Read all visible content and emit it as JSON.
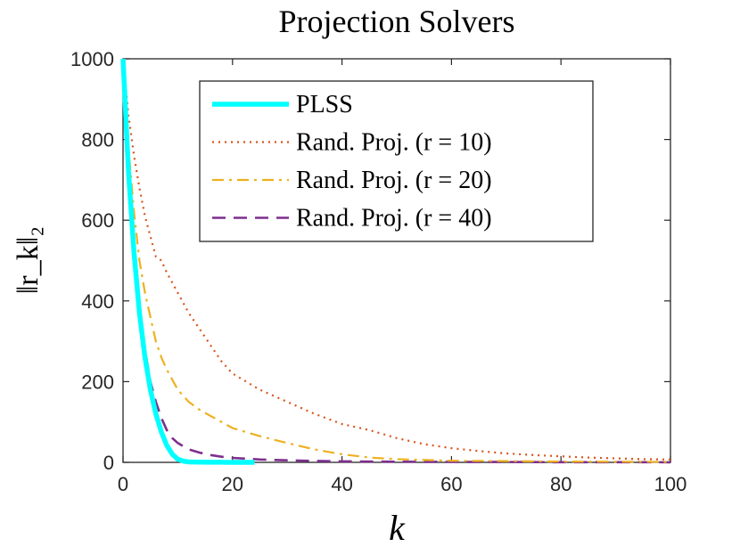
{
  "chart_data": {
    "type": "line",
    "title": "Projection Solvers",
    "xlabel": "k",
    "ylabel": "‖r_k‖₂",
    "xlim": [
      0,
      100
    ],
    "ylim": [
      0,
      1000
    ],
    "xticks": [
      "0",
      "20",
      "40",
      "60",
      "80",
      "100"
    ],
    "yticks": [
      "0",
      "200",
      "400",
      "600",
      "800",
      "1000"
    ],
    "legend_position": "top-center",
    "series": [
      {
        "name": "PLSS",
        "label": "PLSS",
        "color": "#00FFFF",
        "style": "solid",
        "x": [
          0,
          1,
          2,
          3,
          4,
          5,
          6,
          7,
          8,
          9,
          10,
          11,
          12,
          14,
          16,
          18,
          20,
          22,
          24
        ],
        "y": [
          1000,
          720,
          520,
          370,
          260,
          180,
          120,
          75,
          42,
          20,
          8,
          3,
          1,
          0.5,
          0.3,
          0.2,
          0.1,
          0.1,
          0.1
        ]
      },
      {
        "name": "Rand. Proj. (r = 10)",
        "label": "Rand. Proj. (r = 10)",
        "color": "#D95319",
        "style": "dotted",
        "x": [
          0,
          1,
          2,
          3,
          4,
          5,
          6,
          7,
          8,
          10,
          12,
          14,
          16,
          18,
          20,
          25,
          30,
          35,
          40,
          45,
          50,
          55,
          60,
          65,
          70,
          75,
          80,
          85,
          90,
          95,
          100
        ],
        "y": [
          1000,
          860,
          760,
          680,
          610,
          560,
          510,
          500,
          470,
          420,
          370,
          330,
          290,
          250,
          220,
          180,
          150,
          120,
          95,
          80,
          60,
          45,
          35,
          28,
          22,
          18,
          15,
          12,
          10,
          8,
          7
        ]
      },
      {
        "name": "Rand. Proj. (r = 20)",
        "label": "Rand. Proj. (r = 20)",
        "color": "#EDB120",
        "style": "dashdot",
        "x": [
          0,
          1,
          2,
          3,
          4,
          5,
          6,
          7,
          8,
          10,
          12,
          14,
          16,
          18,
          20,
          25,
          30,
          35,
          40,
          45,
          50,
          60,
          70,
          80,
          90,
          100
        ],
        "y": [
          1000,
          780,
          620,
          500,
          420,
          360,
          300,
          260,
          230,
          180,
          150,
          130,
          115,
          100,
          85,
          65,
          48,
          32,
          20,
          12,
          8,
          4,
          3,
          2,
          1.5,
          1
        ]
      },
      {
        "name": "Rand. Proj. (r = 40)",
        "label": "Rand. Proj. (r = 40)",
        "color": "#7E2F8E",
        "style": "dashed",
        "x": [
          0,
          1,
          2,
          3,
          4,
          5,
          6,
          7,
          8,
          9,
          10,
          12,
          14,
          16,
          18,
          20,
          25,
          30,
          35,
          40,
          50,
          60,
          70,
          80,
          90,
          100
        ],
        "y": [
          1000,
          720,
          520,
          380,
          280,
          200,
          150,
          110,
          80,
          60,
          48,
          32,
          24,
          18,
          14,
          11,
          7,
          5,
          3.5,
          2.5,
          1.5,
          1,
          0.8,
          0.5,
          0.4,
          0.3
        ]
      }
    ]
  }
}
